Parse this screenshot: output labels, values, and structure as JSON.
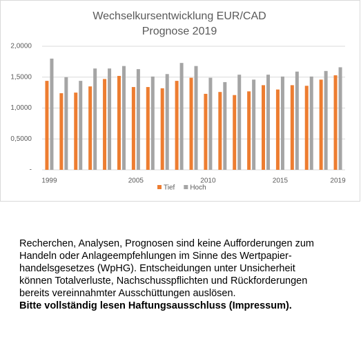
{
  "chart_data": {
    "type": "bar",
    "title": "Wechselkursentwicklung EUR/CAD",
    "subtitle": "Prognose 2019",
    "categories": [
      "1999",
      null,
      null,
      null,
      null,
      null,
      "2005",
      null,
      null,
      null,
      null,
      "2010",
      null,
      null,
      null,
      null,
      "2015",
      null,
      null,
      null,
      "2019"
    ],
    "series": [
      {
        "name": "Tief",
        "color": "#ed7d31",
        "values": [
          1.44,
          1.24,
          1.25,
          1.35,
          1.47,
          1.52,
          1.34,
          1.34,
          1.32,
          1.44,
          1.49,
          1.23,
          1.26,
          1.21,
          1.27,
          1.37,
          1.3,
          1.37,
          1.36,
          1.46,
          1.53
        ]
      },
      {
        "name": "Hoch",
        "color": "#a5a5a5",
        "values": [
          1.8,
          1.5,
          1.44,
          1.64,
          1.64,
          1.68,
          1.63,
          1.51,
          1.55,
          1.73,
          1.68,
          1.49,
          1.42,
          1.54,
          1.46,
          1.54,
          1.51,
          1.59,
          1.51,
          1.6,
          1.66
        ]
      }
    ],
    "ylim": [
      0,
      2
    ],
    "yticks": [
      {
        "value": 0,
        "label": "-"
      },
      {
        "value": 0.5,
        "label": "0,5000"
      },
      {
        "value": 1,
        "label": "1,0000"
      },
      {
        "value": 1.5,
        "label": "1,5000"
      },
      {
        "value": 2,
        "label": "2,0000"
      }
    ],
    "grid": true,
    "legend": "bottom"
  },
  "disclaimer": {
    "lines": [
      "Recherchen, Analysen, Prognosen sind keine Aufforderungen zum",
      "Handeln oder Anlageempfehlungen im Sinne des Wertpapier-",
      "handelsgesetzes (WpHG). Entscheidungen unter Unsicherheit",
      "können Totalverluste, Nachschusspflichten und Rückforderungen",
      "bereits vereinnahmter Ausschüttungen auslösen."
    ],
    "bold": "Bitte vollständig lesen Haftungsausschluss (Impressum)."
  }
}
